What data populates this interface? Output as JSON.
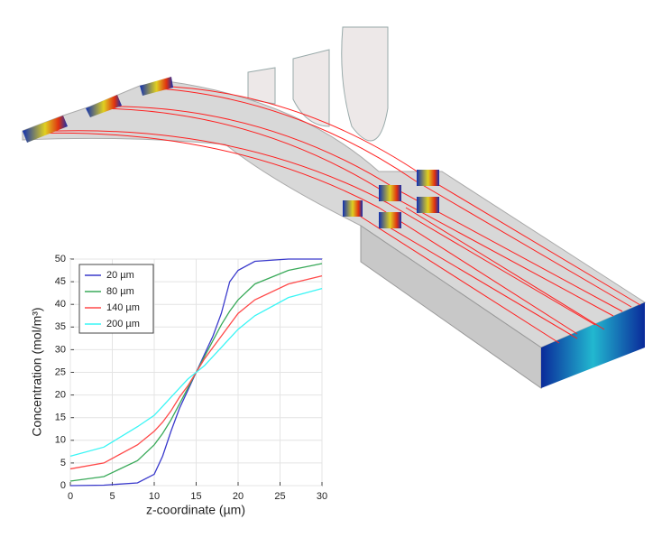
{
  "chart_data": {
    "type": "line",
    "x_label": "z-coordinate (µm)",
    "y_label": "Concentration (mol/m³)",
    "x": [
      0,
      4,
      8,
      10,
      11,
      12,
      13,
      14,
      15,
      16,
      17,
      18,
      19,
      20,
      22,
      26,
      30
    ],
    "series": [
      {
        "name": "20 µm",
        "color": "#3a3acc",
        "values": [
          0,
          0.1,
          0.6,
          2.5,
          6.5,
          12,
          17,
          21,
          25,
          29,
          33,
          38,
          45,
          47.5,
          49.5,
          50,
          50
        ]
      },
      {
        "name": "80 µm",
        "color": "#3aaa5a",
        "values": [
          1,
          2,
          5.5,
          9,
          11.5,
          14.5,
          18,
          21.5,
          25,
          28.5,
          32,
          35.5,
          38.5,
          41,
          44.5,
          47.5,
          49
        ]
      },
      {
        "name": "140 µm",
        "color": "#ff4a4a",
        "values": [
          3.7,
          5,
          9,
          12,
          14,
          16.5,
          19.5,
          22,
          25,
          28,
          30.5,
          33,
          35.5,
          38,
          41,
          44.5,
          46.3
        ]
      },
      {
        "name": "200 µm",
        "color": "#3af5f5",
        "values": [
          6.5,
          8.5,
          13,
          15.5,
          17.5,
          19.5,
          21.5,
          23.5,
          25,
          26.5,
          28.5,
          30.5,
          32.5,
          34.5,
          37.5,
          41.5,
          43.5
        ]
      }
    ],
    "xlim": [
      0,
      30
    ],
    "xticks": [
      0,
      5,
      10,
      15,
      20,
      25,
      30
    ],
    "ylim": [
      0,
      50
    ],
    "yticks": [
      0,
      5,
      10,
      15,
      20,
      25,
      30,
      35,
      40,
      45,
      50
    ],
    "grid": true,
    "legend": "upper-left"
  }
}
